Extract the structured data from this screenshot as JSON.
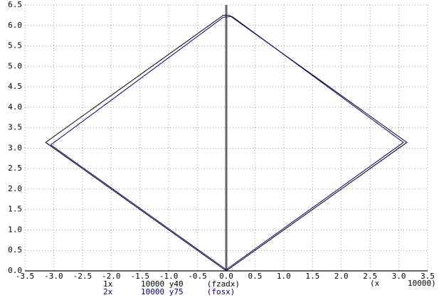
{
  "chart_data": {
    "type": "line",
    "x_label": "(x      10000)",
    "xlim": [
      -3.5,
      3.5
    ],
    "xticks": [
      -3.5,
      {
        "value": -3,
        "label": "-3.0"
      },
      -2.5,
      {
        "value": -2,
        "label": "-2.0"
      },
      -1.5,
      {
        "value": -1,
        "label": "-1.0"
      },
      -0.5,
      {
        "value": 0,
        "label": "0.0"
      },
      0.5,
      {
        "value": 1,
        "label": "1.0"
      },
      1.5,
      {
        "value": 2,
        "label": "2.0"
      },
      2.5,
      {
        "value": 3,
        "label": "3.0"
      },
      3.5
    ],
    "ylim": [
      0,
      6.5
    ],
    "yticks": [
      {
        "value": 0,
        "label": "0.0"
      },
      0.5,
      {
        "value": 1,
        "label": "1.0"
      },
      1.5,
      {
        "value": 2,
        "label": "2.0"
      },
      2.5,
      {
        "value": 3,
        "label": "3.0"
      },
      3.5,
      {
        "value": 4,
        "label": "4.0"
      },
      4.5,
      {
        "value": 5,
        "label": "5.0"
      },
      5.5,
      {
        "value": 6,
        "label": "6.0"
      },
      6.5
    ],
    "grid": true,
    "series": [
      {
        "name": "1x      10000 y40     (fzadx)",
        "color": "#000000",
        "x": [
          0,
          3.14,
          0.05,
          -0.05,
          -3.14,
          0
        ],
        "values": [
          0,
          3.14,
          6.25,
          6.25,
          3.14,
          0
        ]
      },
      {
        "name": "2x      10000 y75     (fosx)",
        "color": "#000080",
        "x": [
          0,
          3.08,
          0.1,
          -0.05,
          -3.05,
          0
        ],
        "values": [
          0.03,
          3.14,
          6.22,
          6.2,
          3.08,
          0.03
        ]
      }
    ]
  }
}
